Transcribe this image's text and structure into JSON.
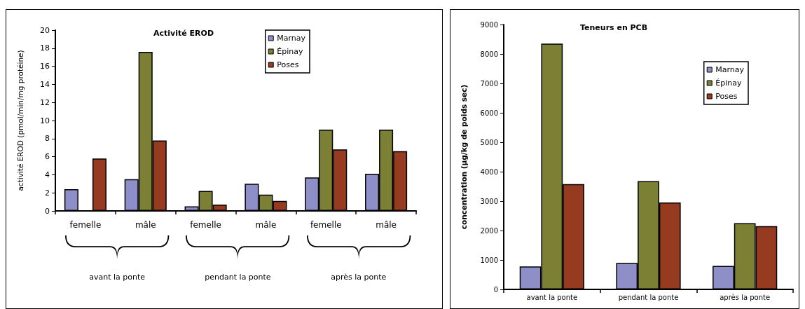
{
  "chart_data": [
    {
      "type": "bar",
      "title": "Activité EROD",
      "ylabel": "activité EROD (pmol/min/mg protéine)",
      "categories": [
        "femelle",
        "mâle",
        "femelle",
        "mâle",
        "femelle",
        "mâle"
      ],
      "series": [
        {
          "name": "Marnay",
          "color": "#8e8fc8",
          "values": [
            2.4,
            3.5,
            0.5,
            3.0,
            3.7,
            4.1
          ]
        },
        {
          "name": "Épinay",
          "color": "#7b8035",
          "values": [
            null,
            17.6,
            2.2,
            1.8,
            9.0,
            9.0
          ]
        },
        {
          "name": "Poses",
          "color": "#963a20",
          "values": [
            5.8,
            7.8,
            0.7,
            1.1,
            6.8,
            6.6
          ]
        }
      ],
      "ylim": [
        0,
        20
      ],
      "yticks": [
        0,
        2,
        4,
        6,
        8,
        10,
        12,
        14,
        16,
        18,
        20
      ],
      "legend": "top right",
      "annotations": [
        "avant la ponte",
        "pendant la ponte",
        "après la ponte"
      ]
    },
    {
      "type": "bar",
      "title": "Teneurs en PCB",
      "ylabel": "concentration (µg/kg de poids sec)",
      "categories": [
        "avant la ponte",
        "pendant la ponte",
        "après la ponte"
      ],
      "series": [
        {
          "name": "Marnay",
          "color": "#8e8fc8",
          "values": [
            780,
            900,
            800
          ]
        },
        {
          "name": "Épinay",
          "color": "#7b8035",
          "values": [
            8350,
            3680,
            2250
          ]
        },
        {
          "name": "Poses",
          "color": "#963a20",
          "values": [
            3580,
            2950,
            2150
          ]
        }
      ],
      "ylim": [
        0,
        9000
      ],
      "yticks": [
        0,
        1000,
        2000,
        3000,
        4000,
        5000,
        6000,
        7000,
        8000,
        9000
      ],
      "legend": "top right"
    }
  ]
}
